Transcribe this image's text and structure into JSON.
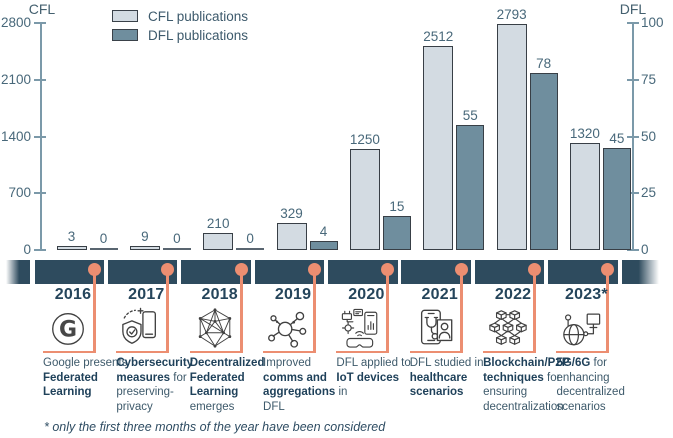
{
  "figure": {
    "footnote": "* only the first three months of the year have been considered"
  },
  "legend": [
    {
      "label": "CFL publications",
      "color": "#d3dbe2"
    },
    {
      "label": "DFL publications",
      "color": "#6f8e9e"
    }
  ],
  "chart_data": {
    "type": "bar",
    "categories": [
      "2016",
      "2017",
      "2018",
      "2019",
      "2020",
      "2021",
      "2022",
      "2023*"
    ],
    "series": [
      {
        "name": "CFL publications",
        "axis": "left",
        "color": "#d3dbe2",
        "values": [
          3,
          9,
          210,
          329,
          1250,
          2512,
          2793,
          1320
        ]
      },
      {
        "name": "DFL publications",
        "axis": "right",
        "color": "#6f8e9e",
        "values": [
          0,
          0,
          0,
          4,
          15,
          55,
          78,
          45
        ]
      }
    ],
    "left_axis": {
      "title": "CFL",
      "ticks": [
        0,
        700,
        1400,
        2100,
        2800
      ],
      "max": 2800
    },
    "right_axis": {
      "title": "DFL",
      "ticks": [
        0,
        25,
        50,
        75,
        100
      ],
      "max": 100
    },
    "legend_position": "top-left",
    "grid": false
  },
  "timeline": {
    "milestones": [
      {
        "year": "2016",
        "icon": "google-logo-icon",
        "text": [
          {
            "t": "Google presents ",
            "b": false
          },
          {
            "t": "Federated Learning",
            "b": true
          }
        ]
      },
      {
        "year": "2017",
        "icon": "shield-privacy-icon",
        "text": [
          {
            "t": "Cybersecurity measures",
            "b": true
          },
          {
            "t": " for preserving-privacy",
            "b": false
          }
        ]
      },
      {
        "year": "2018",
        "icon": "decentralized-network-icon",
        "text": [
          {
            "t": "Decentralized Federated Learning",
            "b": true
          },
          {
            "t": " emerges",
            "b": false
          }
        ]
      },
      {
        "year": "2019",
        "icon": "comms-graph-icon",
        "text": [
          {
            "t": "Improved ",
            "b": false
          },
          {
            "t": "comms and aggregations",
            "b": true
          },
          {
            "t": " in DFL",
            "b": false
          }
        ]
      },
      {
        "year": "2020",
        "icon": "iot-devices-icon",
        "text": [
          {
            "t": "DFL applied to ",
            "b": false
          },
          {
            "t": "IoT devices",
            "b": true
          }
        ]
      },
      {
        "year": "2021",
        "icon": "healthcare-phone-icon",
        "text": [
          {
            "t": "DFL studied in ",
            "b": false
          },
          {
            "t": "healthcare scenarios",
            "b": true
          }
        ]
      },
      {
        "year": "2022",
        "icon": "blockchain-p2p-icon",
        "text": [
          {
            "t": "Blockchain/P2P techniques",
            "b": true
          },
          {
            "t": " for ensuring decentralization",
            "b": false
          }
        ]
      },
      {
        "year": "2023*",
        "icon": "globe-5g-icon",
        "text": [
          {
            "t": "5G/6G",
            "b": true
          },
          {
            "t": " for enhancing decentralized scenarios",
            "b": false
          }
        ]
      }
    ]
  },
  "colors": {
    "band_navy": "#2e4b5e",
    "accent_orange": "#ec8e71",
    "axis": "#7b99a9",
    "cfl_bar": "#d3dbe2",
    "dfl_bar": "#6f8e9e"
  }
}
